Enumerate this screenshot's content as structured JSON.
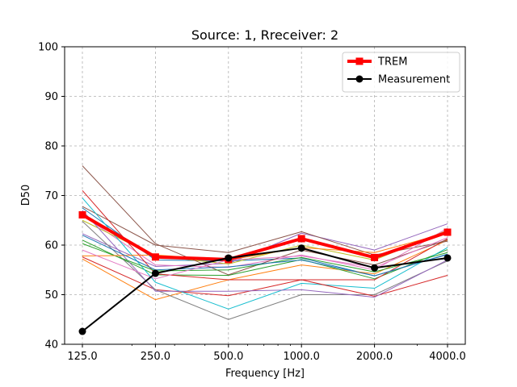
{
  "chart_data": {
    "type": "line",
    "title": "Source: 1, Rreceiver: 2",
    "xlabel": "Frequency [Hz]",
    "ylabel": "D50",
    "x_scale": "log2",
    "x": [
      125,
      250,
      500,
      1000,
      2000,
      4000
    ],
    "x_tick_labels": [
      "125.0",
      "250.0",
      "500.0",
      "1000.0",
      "2000.0",
      "4000.0"
    ],
    "ylim": [
      40,
      100
    ],
    "y_ticks": [
      40,
      50,
      60,
      70,
      80,
      90,
      100
    ],
    "y_tick_labels": [
      "40",
      "50",
      "60",
      "70",
      "80",
      "90",
      "100"
    ],
    "grid": true,
    "legend_position": "top-right",
    "legend": [
      "TREM",
      "Measurement"
    ],
    "series": [
      {
        "name": "TREM",
        "color": "#ff0000",
        "marker": "square",
        "emphasis": true,
        "values": [
          66.1,
          57.6,
          57.1,
          61.3,
          57.5,
          62.6
        ]
      },
      {
        "name": "Measurement",
        "color": "#000000",
        "marker": "circle",
        "emphasis": true,
        "values": [
          42.6,
          54.3,
          57.4,
          59.4,
          55.4,
          57.4
        ]
      },
      {
        "color": "#1f77b4",
        "values": [
          67.5,
          57.0,
          56.8,
          57.4,
          53.8,
          58.1
        ]
      },
      {
        "color": "#ff7f0e",
        "values": [
          57.2,
          49.0,
          53.0,
          56.0,
          54.2,
          61.0
        ]
      },
      {
        "color": "#2ca02c",
        "values": [
          61.0,
          54.0,
          53.9,
          57.1,
          53.2,
          59.1
        ]
      },
      {
        "color": "#d62728",
        "values": [
          57.6,
          51.0,
          49.8,
          53.0,
          53.0,
          61.3
        ]
      },
      {
        "color": "#9467bd",
        "values": [
          62.3,
          55.7,
          56.3,
          62.4,
          59.0,
          64.3
        ]
      },
      {
        "color": "#8c564b",
        "values": [
          67.8,
          60.0,
          58.5,
          62.7,
          58.0,
          60.8
        ]
      },
      {
        "color": "#e377c2",
        "values": [
          66.0,
          56.0,
          55.5,
          58.0,
          55.0,
          63.4
        ]
      },
      {
        "color": "#7f7f7f",
        "values": [
          64.8,
          51.0,
          45.0,
          50.0,
          50.0,
          56.8
        ]
      },
      {
        "color": "#bcbd22",
        "values": [
          65.0,
          57.8,
          56.2,
          60.0,
          57.0,
          63.0
        ]
      },
      {
        "color": "#17becf",
        "values": [
          69.5,
          52.5,
          47.1,
          52.3,
          51.3,
          59.5
        ]
      },
      {
        "color": "#d62728",
        "values": [
          71.0,
          54.2,
          53.0,
          53.0,
          49.7,
          53.9
        ]
      },
      {
        "color": "#8c564b",
        "values": [
          76.0,
          60.3,
          54.0,
          59.0,
          56.0,
          61.1
        ]
      },
      {
        "color": "#9467bd",
        "values": [
          67.0,
          50.7,
          50.7,
          51.0,
          49.5,
          57.0
        ]
      },
      {
        "color": "#2ca02c",
        "values": [
          60.3,
          54.8,
          55.0,
          57.5,
          54.6,
          58.5
        ]
      },
      {
        "color": "#ff7f0e",
        "values": [
          57.8,
          58.0,
          57.0,
          59.5,
          58.5,
          62.5
        ]
      },
      {
        "color": "#1f77b4",
        "values": [
          62.0,
          55.0,
          55.6,
          57.0,
          53.8,
          58.2
        ]
      },
      {
        "color": "#e377c2",
        "values": [
          59.0,
          53.2,
          57.0,
          57.8,
          55.5,
          61.5
        ]
      }
    ]
  }
}
